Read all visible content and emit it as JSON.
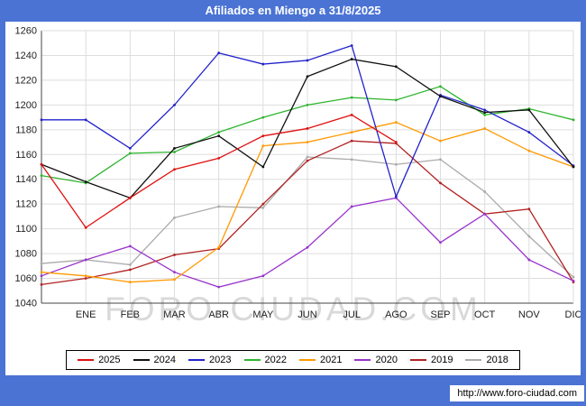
{
  "title": "Afiliados en Miengo a 31/8/2025",
  "watermark": "FORO-CIUDAD.COM",
  "footer_url": "http://www.foro-ciudad.com",
  "colors": {
    "frame_blue": "#4a73d4",
    "grid": "#dddddd",
    "axis": "#444444",
    "tick_text": "#222222"
  },
  "chart_data": {
    "type": "line",
    "title": "Afiliados en Miengo a 31/8/2025",
    "categories": [
      "ENE",
      "FEB",
      "MAR",
      "ABR",
      "MAY",
      "JUN",
      "JUL",
      "AGO",
      "SEP",
      "OCT",
      "NOV",
      "DIC"
    ],
    "ylim": [
      1040,
      1260
    ],
    "ytick_step": 20,
    "grid": true,
    "legend_position": "bottom",
    "series": [
      {
        "name": "2025",
        "color": "#e01010",
        "start": 1152,
        "values": [
          1101,
          1125,
          1148,
          1157,
          1175,
          1181,
          1192,
          1170,
          null,
          null,
          null,
          null
        ]
      },
      {
        "name": "2024",
        "color": "#111111",
        "start": 1152,
        "values": [
          1138,
          1125,
          1165,
          1175,
          1150,
          1223,
          1237,
          1231,
          1207,
          1194,
          1196,
          1150
        ]
      },
      {
        "name": "2023",
        "color": "#2222cc",
        "start": 1188,
        "values": [
          1188,
          1165,
          1200,
          1242,
          1233,
          1236,
          1248,
          1126,
          1208,
          1196,
          1178,
          1151
        ]
      },
      {
        "name": "2022",
        "color": "#2db52d",
        "start": 1143,
        "values": [
          1137,
          1161,
          1162,
          1178,
          1190,
          1200,
          1206,
          1204,
          1215,
          1192,
          1197,
          1188
        ]
      },
      {
        "name": "2021",
        "color": "#ff9900",
        "start": 1065,
        "values": [
          1062,
          1057,
          1059,
          1085,
          1167,
          1170,
          1178,
          1186,
          1171,
          1181,
          1163,
          1150
        ]
      },
      {
        "name": "2020",
        "color": "#9933cc",
        "start": 1062,
        "values": [
          1075,
          1086,
          1065,
          1053,
          1062,
          1085,
          1118,
          1125,
          1089,
          1112,
          1075,
          1058
        ]
      },
      {
        "name": "2019",
        "color": "#b22222",
        "start": 1055,
        "values": [
          1060,
          1067,
          1079,
          1084,
          1120,
          1155,
          1171,
          1169,
          1137,
          1112,
          1116,
          1057
        ]
      },
      {
        "name": "2018",
        "color": "#aaaaaa",
        "start": 1072,
        "values": [
          1075,
          1071,
          1109,
          1118,
          1117,
          1158,
          1156,
          1152,
          1156,
          1130,
          1094,
          1061
        ]
      }
    ]
  }
}
